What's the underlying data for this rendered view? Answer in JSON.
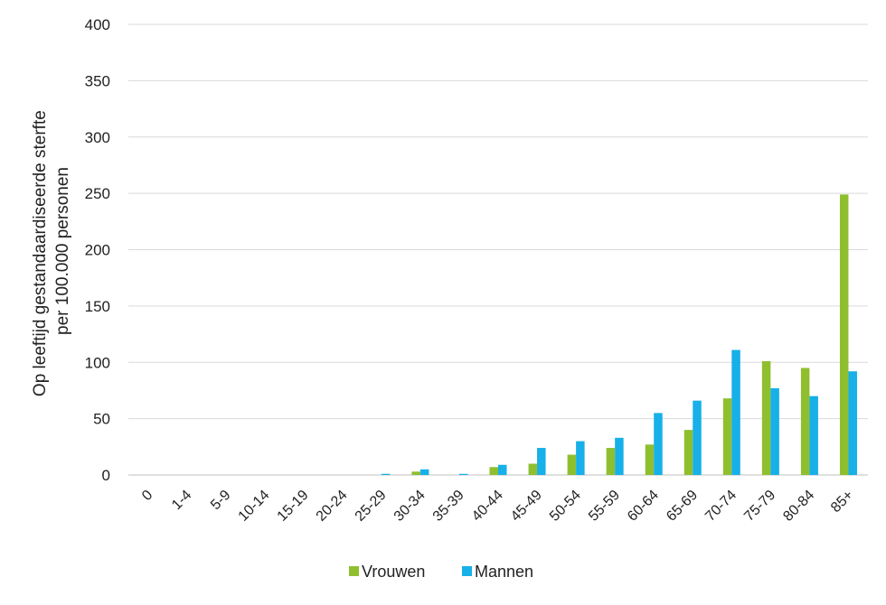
{
  "chart_data": {
    "type": "bar",
    "ylabel_lines": [
      "Op leeftijd gestandaardiseerde  sterfte",
      "per 100.000 personen"
    ],
    "ylim": [
      0,
      400
    ],
    "yticks": [
      "0",
      "50",
      "100",
      "150",
      "200",
      "250",
      "300",
      "350",
      "400"
    ],
    "categories": [
      "0",
      "1-4",
      "5-9",
      "10-14",
      "15-19",
      "20-24",
      "25-29",
      "30-34",
      "35-39",
      "40-44",
      "45-49",
      "50-54",
      "55-59",
      "60-64",
      "65-69",
      "70-74",
      "75-79",
      "80-84",
      "85+"
    ],
    "series": [
      {
        "name": "Vrouwen",
        "color": "#8fbf2f",
        "values": [
          0,
          0,
          0,
          0,
          0,
          0,
          0,
          3,
          0,
          7,
          10,
          18,
          24,
          27,
          40,
          68,
          101,
          95,
          249
        ]
      },
      {
        "name": "Mannen",
        "color": "#17b0e8",
        "values": [
          0,
          0,
          0,
          0,
          0,
          0,
          1,
          5,
          1,
          9,
          24,
          30,
          33,
          55,
          66,
          111,
          77,
          70,
          92
        ]
      }
    ],
    "grid": true,
    "legend": "bottom-center"
  }
}
